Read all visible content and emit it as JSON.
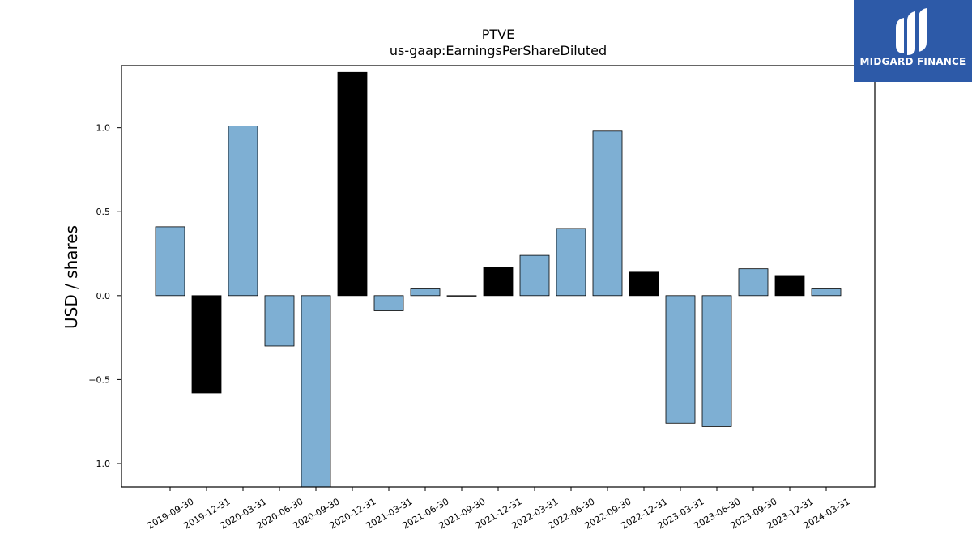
{
  "chart_data": {
    "type": "bar",
    "title": "PTVE",
    "subtitle": "us-gaap:EarningsPerShareDiluted",
    "xlabel": "",
    "ylabel": "USD / shares",
    "ylim": [
      -1.14,
      1.37
    ],
    "yticks": [
      {
        "value": -1.0,
        "label": "−1.0"
      },
      {
        "value": -0.5,
        "label": "−0.5"
      },
      {
        "value": 0.0,
        "label": "0.0"
      },
      {
        "value": 0.5,
        "label": "0.5"
      },
      {
        "value": 1.0,
        "label": "1.0"
      }
    ],
    "categories": [
      "2019-09-30",
      "2019-12-31",
      "2020-03-31",
      "2020-06-30",
      "2020-09-30",
      "2020-12-31",
      "2021-03-31",
      "2021-06-30",
      "2021-09-30",
      "2021-12-31",
      "2022-03-31",
      "2022-06-30",
      "2022-09-30",
      "2022-12-31",
      "2023-03-31",
      "2023-06-30",
      "2023-09-30",
      "2023-12-31",
      "2024-03-31"
    ],
    "values": [
      0.41,
      -0.58,
      1.01,
      -0.3,
      -1.14,
      1.33,
      -0.09,
      0.04,
      0.0,
      0.17,
      0.24,
      0.4,
      0.98,
      0.14,
      -0.76,
      -0.78,
      0.16,
      0.12,
      0.04
    ],
    "highlight": [
      false,
      true,
      false,
      false,
      false,
      true,
      false,
      false,
      false,
      true,
      false,
      false,
      false,
      true,
      false,
      false,
      false,
      true,
      false
    ],
    "colors": {
      "default": "#7eafd3",
      "highlight": "#000000",
      "edge": "#000000"
    },
    "grid": false,
    "legend": "none"
  },
  "logo": {
    "text": "MIDGARD FINANCE",
    "background": "#2d5aa8",
    "icon": "midgard-logo-icon"
  }
}
